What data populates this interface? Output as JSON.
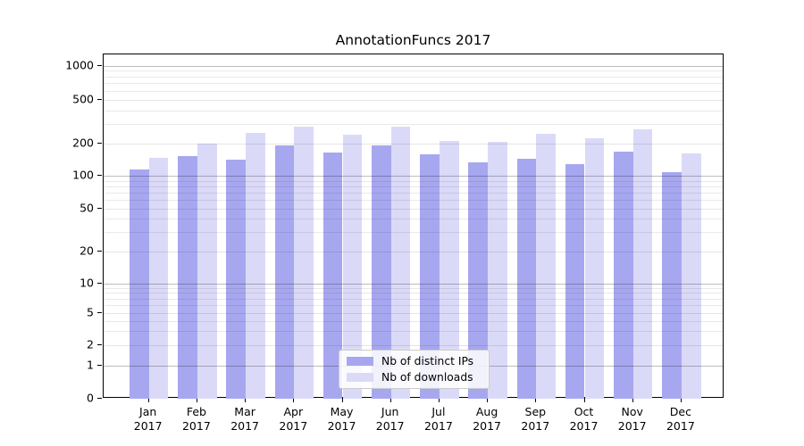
{
  "title": "AnnotationFuncs 2017",
  "legend": {
    "items": [
      {
        "label": "Nb of distinct IPs",
        "color": "#a7a7f0"
      },
      {
        "label": "Nb of downloads",
        "color": "#dadaf8"
      }
    ]
  },
  "chart_data": {
    "type": "bar",
    "title": "AnnotationFuncs 2017",
    "categories": [
      "Jan 2017",
      "Feb 2017",
      "Mar 2017",
      "Apr 2017",
      "May 2017",
      "Jun 2017",
      "Jul 2017",
      "Aug 2017",
      "Sep 2017",
      "Oct 2017",
      "Nov 2017",
      "Dec 2017"
    ],
    "series": [
      {
        "name": "Nb of distinct IPs",
        "color": "#a7a7f0",
        "values": [
          116,
          152,
          143,
          194,
          165,
          191,
          158,
          134,
          145,
          128,
          168,
          109
        ]
      },
      {
        "name": "Nb of downloads",
        "color": "#dadaf8",
        "values": [
          147,
          200,
          249,
          283,
          241,
          283,
          210,
          206,
          245,
          223,
          271,
          162
        ]
      }
    ],
    "xlabel": "",
    "ylabel": "",
    "yscale": "symlog",
    "yticks": [
      0,
      1,
      2,
      5,
      10,
      20,
      50,
      100,
      200,
      500,
      1000
    ],
    "ylim": [
      0,
      1200
    ],
    "grid": "both",
    "legend_position": "lower center"
  }
}
